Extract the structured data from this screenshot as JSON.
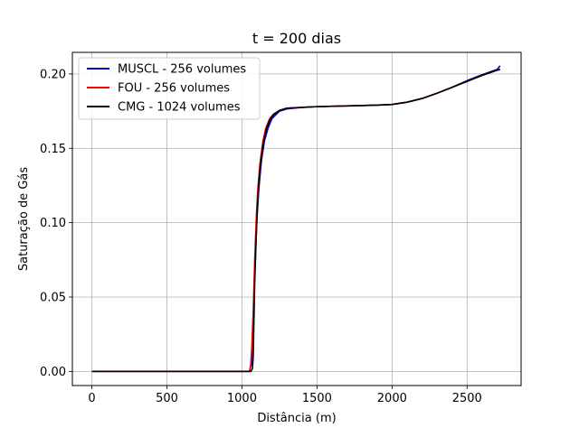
{
  "chart_data": {
    "type": "line",
    "title": "t = 200 dias",
    "xlabel": "Distância (m)",
    "ylabel": "Saturação de Gás",
    "xlim": [
      -130,
      2860
    ],
    "ylim": [
      -0.0095,
      0.2145
    ],
    "xticks": [
      0,
      500,
      1000,
      1500,
      2000,
      2500
    ],
    "xtick_labels": [
      "0",
      "500",
      "1000",
      "1500",
      "2000",
      "2500"
    ],
    "yticks": [
      0.0,
      0.05,
      0.1,
      0.15,
      0.2
    ],
    "ytick_labels": [
      "0.00",
      "0.05",
      "0.10",
      "0.15",
      "0.20"
    ],
    "grid": true,
    "legend_position": "top-left",
    "series": [
      {
        "name": "MUSCL - 256 volumes",
        "color": "#0000cc",
        "x": [
          0,
          1000,
          1050,
          1065,
          1070,
          1080,
          1090,
          1100,
          1115,
          1130,
          1150,
          1175,
          1200,
          1250,
          1300,
          1400,
          1500,
          1700,
          1900,
          2000,
          2100,
          2200,
          2300,
          2400,
          2500,
          2600,
          2700,
          2720
        ],
        "y": [
          0.0,
          0.0,
          0.0,
          0.006,
          0.02,
          0.05,
          0.08,
          0.104,
          0.126,
          0.142,
          0.155,
          0.164,
          0.17,
          0.175,
          0.1765,
          0.1775,
          0.178,
          0.1785,
          0.179,
          0.1795,
          0.181,
          0.1835,
          0.187,
          0.191,
          0.1955,
          0.1995,
          0.203,
          0.2055
        ]
      },
      {
        "name": "FOU - 256 volumes",
        "color": "#ee0000",
        "x": [
          0,
          1050,
          1058,
          1065,
          1075,
          1085,
          1095,
          1105,
          1120,
          1140,
          1160,
          1185,
          1210,
          1250,
          1300,
          1400,
          1500,
          1700,
          1900,
          2000,
          2100,
          2200,
          2300,
          2400,
          2500,
          2600,
          2700,
          2720
        ],
        "y": [
          0.0,
          0.0,
          0.004,
          0.015,
          0.04,
          0.075,
          0.102,
          0.122,
          0.14,
          0.155,
          0.164,
          0.17,
          0.173,
          0.1755,
          0.177,
          0.1775,
          0.178,
          0.1785,
          0.179,
          0.1795,
          0.181,
          0.1835,
          0.187,
          0.191,
          0.195,
          0.199,
          0.2025,
          0.203
        ]
      },
      {
        "name": "CMG - 1024 volumes",
        "color": "#000000",
        "x": [
          0,
          1000,
          1060,
          1070,
          1075,
          1080,
          1085,
          1095,
          1105,
          1120,
          1140,
          1160,
          1185,
          1210,
          1250,
          1300,
          1400,
          1500,
          1700,
          1900,
          2000,
          2100,
          2200,
          2300,
          2400,
          2500,
          2600,
          2700,
          2720
        ],
        "y": [
          0.0,
          0.0,
          0.0,
          0.002,
          0.01,
          0.035,
          0.06,
          0.09,
          0.115,
          0.136,
          0.152,
          0.162,
          0.169,
          0.1725,
          0.1755,
          0.177,
          0.1775,
          0.178,
          0.1785,
          0.179,
          0.1795,
          0.181,
          0.1835,
          0.187,
          0.191,
          0.195,
          0.199,
          0.2025,
          0.203
        ]
      }
    ]
  }
}
